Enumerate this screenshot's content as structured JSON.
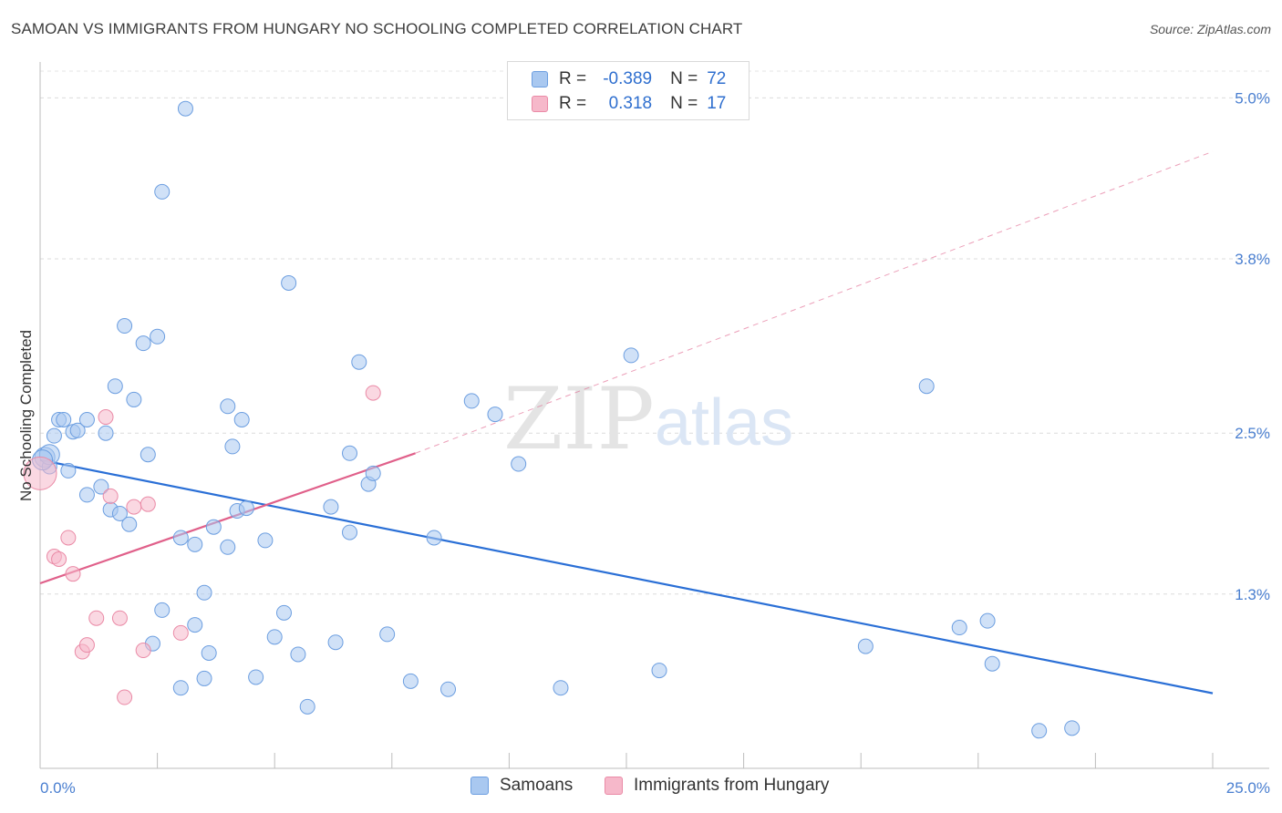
{
  "title": "SAMOAN VS IMMIGRANTS FROM HUNGARY NO SCHOOLING COMPLETED CORRELATION CHART",
  "source": "Source: ZipAtlas.com",
  "watermark": {
    "zip": "ZIP",
    "atlas": "atlas"
  },
  "legend": {
    "rows": [
      {
        "r_label": "R =",
        "r_value": "-0.389",
        "n_label": "N =",
        "n_value": "72",
        "color": "#a9c8f0"
      },
      {
        "r_label": "R =",
        "r_value": "0.318",
        "n_label": "N =",
        "n_value": "17",
        "color": "#f6b8ca"
      }
    ]
  },
  "bottom_legend": [
    {
      "label": "Samoans",
      "color": "#a9c8f0"
    },
    {
      "label": "Immigrants from Hungary",
      "color": "#f6b8ca"
    }
  ],
  "chart_data": {
    "type": "scatter",
    "title": "SAMOAN VS IMMIGRANTS FROM HUNGARY NO SCHOOLING COMPLETED CORRELATION CHART",
    "xlabel": "",
    "ylabel": "No Schooling Completed",
    "xlim": [
      0,
      25
    ],
    "ylim": [
      0,
      5.2
    ],
    "x_tick_labels": [
      "0.0%",
      "25.0%"
    ],
    "y_ticks": [
      1.3,
      2.5,
      3.8,
      5.0
    ],
    "y_tick_labels": [
      "1.3%",
      "2.5%",
      "3.8%",
      "5.0%"
    ],
    "series": [
      {
        "name": "Samoans",
        "color": "#a9c8f0",
        "stroke": "#6c9ee0",
        "trend_color": "#2a6fd6",
        "trend": {
          "x0": 0,
          "y0": 2.3,
          "x1": 25,
          "y1": 0.56,
          "dashed_to": null
        },
        "points": [
          [
            0.1,
            2.32
          ],
          [
            0.2,
            2.25
          ],
          [
            0.3,
            2.48
          ],
          [
            0.4,
            2.6
          ],
          [
            0.5,
            2.6
          ],
          [
            0.6,
            2.22
          ],
          [
            0.7,
            2.51
          ],
          [
            0.8,
            2.52
          ],
          [
            1.0,
            2.6
          ],
          [
            1.4,
            2.5
          ],
          [
            1.0,
            2.04
          ],
          [
            1.3,
            2.1
          ],
          [
            1.5,
            1.93
          ],
          [
            1.7,
            1.9
          ],
          [
            1.9,
            1.82
          ],
          [
            1.6,
            2.85
          ],
          [
            1.8,
            3.3
          ],
          [
            2.0,
            2.75
          ],
          [
            2.2,
            3.17
          ],
          [
            2.5,
            3.22
          ],
          [
            2.3,
            2.34
          ],
          [
            2.6,
            4.3
          ],
          [
            3.1,
            4.92
          ],
          [
            2.6,
            1.18
          ],
          [
            2.4,
            0.93
          ],
          [
            3.0,
            0.6
          ],
          [
            3.0,
            1.72
          ],
          [
            3.3,
            1.07
          ],
          [
            3.3,
            1.67
          ],
          [
            3.5,
            1.31
          ],
          [
            3.6,
            0.86
          ],
          [
            3.5,
            0.67
          ],
          [
            3.7,
            1.8
          ],
          [
            4.0,
            2.7
          ],
          [
            4.0,
            1.65
          ],
          [
            4.1,
            2.4
          ],
          [
            4.2,
            1.92
          ],
          [
            4.3,
            2.6
          ],
          [
            4.4,
            1.94
          ],
          [
            4.6,
            0.68
          ],
          [
            4.8,
            1.7
          ],
          [
            5.0,
            0.98
          ],
          [
            5.2,
            1.16
          ],
          [
            5.3,
            3.62
          ],
          [
            5.5,
            0.85
          ],
          [
            5.7,
            0.46
          ],
          [
            6.2,
            1.95
          ],
          [
            6.3,
            0.94
          ],
          [
            6.6,
            2.35
          ],
          [
            6.6,
            1.76
          ],
          [
            6.8,
            3.03
          ],
          [
            7.0,
            2.12
          ],
          [
            7.1,
            2.2
          ],
          [
            7.4,
            1.0
          ],
          [
            7.9,
            0.65
          ],
          [
            8.4,
            1.72
          ],
          [
            8.7,
            0.59
          ],
          [
            9.2,
            2.74
          ],
          [
            9.7,
            2.64
          ],
          [
            10.2,
            2.27
          ],
          [
            11.1,
            0.6
          ],
          [
            12.6,
            3.08
          ],
          [
            13.2,
            0.73
          ],
          [
            17.6,
            0.91
          ],
          [
            18.9,
            2.85
          ],
          [
            19.6,
            1.05
          ],
          [
            20.2,
            1.1
          ],
          [
            20.3,
            0.78
          ],
          [
            21.3,
            0.28
          ],
          [
            22.0,
            0.3
          ],
          [
            0.2,
            2.34
          ],
          [
            0.05,
            2.3
          ]
        ]
      },
      {
        "name": "Immigrants from Hungary",
        "color": "#f6b8ca",
        "stroke": "#ea8aa6",
        "trend_color": "#e0608a",
        "trend": {
          "x0": 0,
          "y0": 1.38,
          "x1": 8.0,
          "y1": 2.35,
          "dashed_to": {
            "x": 25,
            "y": 4.6
          }
        },
        "points": [
          [
            0.0,
            2.2
          ],
          [
            0.3,
            1.58
          ],
          [
            0.4,
            1.56
          ],
          [
            0.6,
            1.72
          ],
          [
            0.7,
            1.45
          ],
          [
            0.9,
            0.87
          ],
          [
            1.0,
            0.92
          ],
          [
            1.2,
            1.12
          ],
          [
            1.4,
            2.62
          ],
          [
            1.5,
            2.03
          ],
          [
            1.7,
            1.12
          ],
          [
            1.8,
            0.53
          ],
          [
            2.0,
            1.95
          ],
          [
            2.2,
            0.88
          ],
          [
            2.3,
            1.97
          ],
          [
            3.0,
            1.01
          ],
          [
            7.1,
            2.8
          ]
        ]
      }
    ],
    "grid": true,
    "legend_position": "top-center"
  }
}
